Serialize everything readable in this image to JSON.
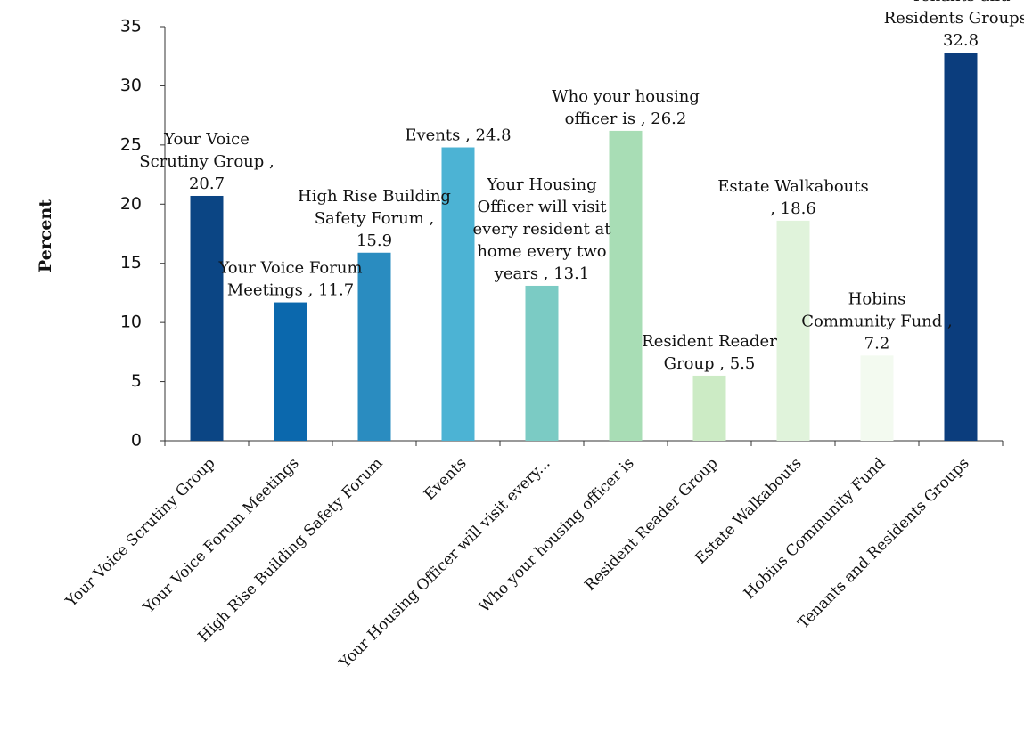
{
  "chart_data": {
    "type": "bar",
    "ylabel": "Percent",
    "xlabel": "",
    "ylim": [
      0,
      35
    ],
    "yticks": [
      0,
      5,
      10,
      15,
      20,
      25,
      30,
      35
    ],
    "grid": false,
    "legend": "none",
    "categories": [
      "Your Voice Scrutiny Group",
      "Your Voice Forum Meetings",
      "High Rise Building Safety Forum",
      "Events",
      "Your Housing Officer will visit every...",
      "Who your housing officer is",
      "Resident Reader Group",
      "Estate Walkabouts",
      "Hobins Community Fund",
      "Tenants and Residents Groups"
    ],
    "values": [
      20.7,
      11.7,
      15.9,
      24.8,
      13.1,
      26.2,
      5.5,
      18.6,
      7.2,
      32.8
    ],
    "colors": [
      "#0b4584",
      "#0b68ad",
      "#2a8cc0",
      "#4cb3d4",
      "#7bcbc4",
      "#a8ddb5",
      "#ccebc5",
      "#e0f3db",
      "#f3faf0",
      "#0b3d7d"
    ],
    "data_labels": [
      [
        "Your Voice",
        "Scrutiny Group ,",
        "20.7"
      ],
      [
        "Your Voice Forum",
        "Meetings , 11.7"
      ],
      [
        "High Rise Building",
        "Safety Forum ,",
        "15.9"
      ],
      [
        "Events , 24.8"
      ],
      [
        "Your Housing",
        "Officer will visit",
        "every resident at",
        "home every two",
        "years , 13.1"
      ],
      [
        "Who your housing",
        "officer is , 26.2"
      ],
      [
        "Resident Reader",
        "Group , 5.5"
      ],
      [
        "Estate Walkabouts",
        ", 18.6"
      ],
      [
        "Hobins",
        "Community Fund ,",
        "7.2"
      ],
      [
        "Tenants and",
        "Residents Groups ,",
        "32.8"
      ]
    ]
  }
}
